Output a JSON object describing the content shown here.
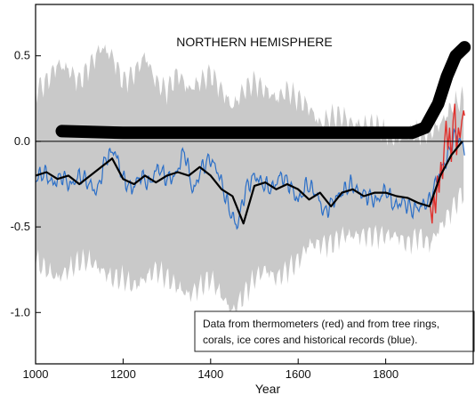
{
  "chart_data": {
    "type": "line",
    "title": "NORTHERN HEMISPHERE",
    "xlabel": "Year",
    "ylabel": "",
    "xlim": [
      1000,
      2000
    ],
    "ylim": [
      -1.3,
      0.8
    ],
    "xticks": [
      1000,
      1200,
      1400,
      1600,
      1800
    ],
    "yticks": [
      0.5,
      0.0,
      -0.5,
      -1.0
    ],
    "xtick_labels": [
      "1000",
      "1200",
      "1400",
      "1600",
      "1800"
    ],
    "ytick_labels": [
      "0.5",
      "0.0",
      "-0.5",
      "-1.0"
    ],
    "annotation": {
      "line1": "Data from thermometers (red) and from tree rings,",
      "line2": "corals, ice cores and historical records (blue)."
    },
    "series": [
      {
        "role": "uncertainty-band",
        "color": "#c9c9c9",
        "x": [
          1000,
          1025,
          1050,
          1075,
          1100,
          1125,
          1150,
          1175,
          1200,
          1225,
          1250,
          1275,
          1300,
          1325,
          1350,
          1375,
          1400,
          1425,
          1450,
          1475,
          1500,
          1525,
          1550,
          1575,
          1600,
          1625,
          1650,
          1675,
          1700,
          1725,
          1750,
          1775,
          1800,
          1825,
          1850,
          1875,
          1900,
          1925,
          1950,
          1975
        ],
        "upper": [
          0.3,
          0.35,
          0.45,
          0.42,
          0.35,
          0.45,
          0.55,
          0.5,
          0.35,
          0.4,
          0.5,
          0.35,
          0.3,
          0.4,
          0.3,
          0.35,
          0.4,
          0.3,
          0.2,
          0.3,
          0.35,
          0.3,
          0.25,
          0.3,
          0.25,
          0.2,
          0.1,
          0.15,
          0.15,
          0.1,
          0.1,
          0.1,
          0.05,
          0.0,
          0.05,
          0.05,
          0.05,
          0.1,
          0.2,
          0.25
        ],
        "lower": [
          -0.7,
          -0.75,
          -0.8,
          -0.75,
          -0.7,
          -0.7,
          -0.75,
          -0.8,
          -0.8,
          -0.85,
          -0.8,
          -0.75,
          -0.8,
          -0.85,
          -0.9,
          -0.85,
          -0.8,
          -0.9,
          -1.0,
          -0.9,
          -0.8,
          -0.75,
          -0.8,
          -0.75,
          -0.7,
          -0.6,
          -0.6,
          -0.6,
          -0.55,
          -0.55,
          -0.55,
          -0.55,
          -0.55,
          -0.55,
          -0.6,
          -0.55,
          -0.6,
          -0.5,
          -0.4,
          -0.3
        ]
      },
      {
        "role": "proxy-records",
        "color": "#2b6fc8",
        "x": [
          1000,
          1020,
          1040,
          1060,
          1080,
          1100,
          1120,
          1140,
          1160,
          1180,
          1200,
          1220,
          1240,
          1260,
          1280,
          1300,
          1320,
          1340,
          1360,
          1380,
          1400,
          1420,
          1440,
          1460,
          1480,
          1500,
          1520,
          1540,
          1560,
          1580,
          1600,
          1620,
          1640,
          1660,
          1680,
          1700,
          1720,
          1740,
          1760,
          1780,
          1800,
          1820,
          1840,
          1860,
          1880,
          1900,
          1920,
          1940,
          1960,
          1980
        ],
        "y": [
          -0.22,
          -0.18,
          -0.25,
          -0.2,
          -0.26,
          -0.2,
          -0.24,
          -0.3,
          -0.1,
          -0.05,
          -0.22,
          -0.28,
          -0.2,
          -0.25,
          -0.15,
          -0.22,
          -0.2,
          -0.05,
          -0.3,
          -0.15,
          -0.1,
          -0.2,
          -0.38,
          -0.5,
          -0.28,
          -0.2,
          -0.25,
          -0.28,
          -0.2,
          -0.25,
          -0.35,
          -0.25,
          -0.3,
          -0.42,
          -0.35,
          -0.3,
          -0.25,
          -0.3,
          -0.32,
          -0.35,
          -0.28,
          -0.38,
          -0.35,
          -0.4,
          -0.38,
          -0.35,
          -0.2,
          -0.1,
          0.05,
          -0.05
        ]
      },
      {
        "role": "thermometer-records",
        "color": "#e0312d",
        "x": [
          1902,
          1906,
          1910,
          1914,
          1918,
          1922,
          1926,
          1930,
          1934,
          1938,
          1942,
          1946,
          1950,
          1954,
          1958,
          1962,
          1966,
          1970,
          1974,
          1978,
          1980
        ],
        "y": [
          -0.38,
          -0.48,
          -0.3,
          -0.42,
          -0.2,
          -0.3,
          -0.12,
          -0.22,
          -0.02,
          0.12,
          -0.05,
          0.08,
          -0.12,
          0.12,
          0.22,
          -0.08,
          0.08,
          0.02,
          0.12,
          0.18,
          0.15
        ]
      },
      {
        "role": "smoothed",
        "color": "#000000",
        "x": [
          1000,
          1025,
          1050,
          1075,
          1100,
          1125,
          1150,
          1175,
          1200,
          1225,
          1250,
          1275,
          1300,
          1325,
          1350,
          1375,
          1400,
          1425,
          1450,
          1475,
          1500,
          1525,
          1550,
          1575,
          1600,
          1625,
          1650,
          1675,
          1700,
          1725,
          1750,
          1775,
          1800,
          1825,
          1850,
          1875,
          1900,
          1925,
          1950,
          1975
        ],
        "y": [
          -0.2,
          -0.18,
          -0.22,
          -0.2,
          -0.25,
          -0.2,
          -0.15,
          -0.1,
          -0.22,
          -0.25,
          -0.2,
          -0.24,
          -0.2,
          -0.18,
          -0.2,
          -0.15,
          -0.2,
          -0.28,
          -0.32,
          -0.48,
          -0.26,
          -0.24,
          -0.28,
          -0.25,
          -0.28,
          -0.34,
          -0.3,
          -0.38,
          -0.3,
          -0.28,
          -0.32,
          -0.3,
          -0.3,
          -0.32,
          -0.33,
          -0.36,
          -0.38,
          -0.2,
          -0.08,
          0.0
        ]
      }
    ],
    "trend_band": {
      "color": "#000000",
      "x": [
        1060,
        1200,
        1400,
        1600,
        1800,
        1860,
        1890,
        1920,
        1940,
        1960,
        1980
      ],
      "y": [
        0.06,
        0.05,
        0.05,
        0.05,
        0.05,
        0.05,
        0.08,
        0.22,
        0.38,
        0.5,
        0.55
      ]
    }
  }
}
